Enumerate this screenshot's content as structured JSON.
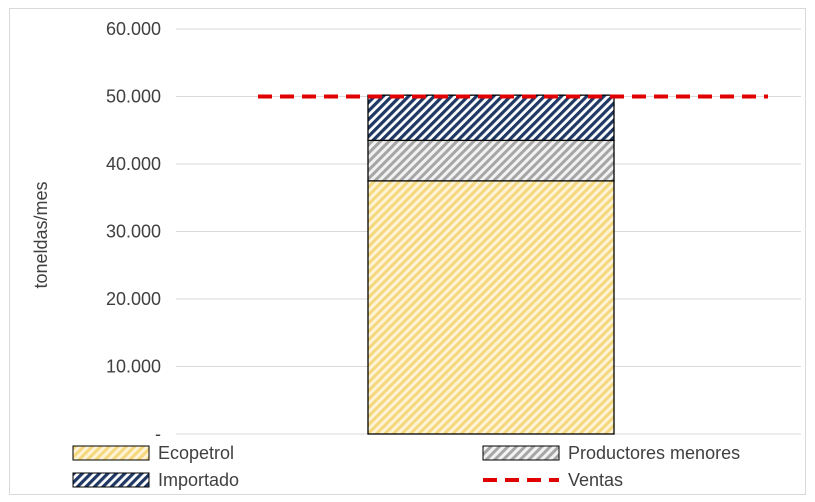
{
  "chart_data": {
    "type": "bar",
    "stacked": true,
    "categories": [
      ""
    ],
    "series": [
      {
        "name": "Ecopetrol",
        "values": [
          37500
        ],
        "color": "#f5d77e",
        "pattern": "diagonal-hatch"
      },
      {
        "name": "Productores menores",
        "values": [
          6000
        ],
        "color": "#a6a6a6",
        "pattern": "diagonal-hatch"
      },
      {
        "name": "Importado",
        "values": [
          6700
        ],
        "color": "#1f3864",
        "pattern": "diagonal-hatch"
      }
    ],
    "reference_line": {
      "name": "Ventas",
      "value": 50000,
      "color": "#e00000",
      "style": "dashed"
    },
    "ylabel": "toneldas/mes",
    "ylim": [
      0,
      60000
    ],
    "yticks": [
      0,
      10000,
      20000,
      30000,
      40000,
      50000,
      60000
    ],
    "ytick_labels": [
      "-",
      "10.000",
      "20.000",
      "30.000",
      "40.000",
      "50.000",
      "60.000"
    ],
    "grid": true,
    "legend_position": "bottom"
  }
}
